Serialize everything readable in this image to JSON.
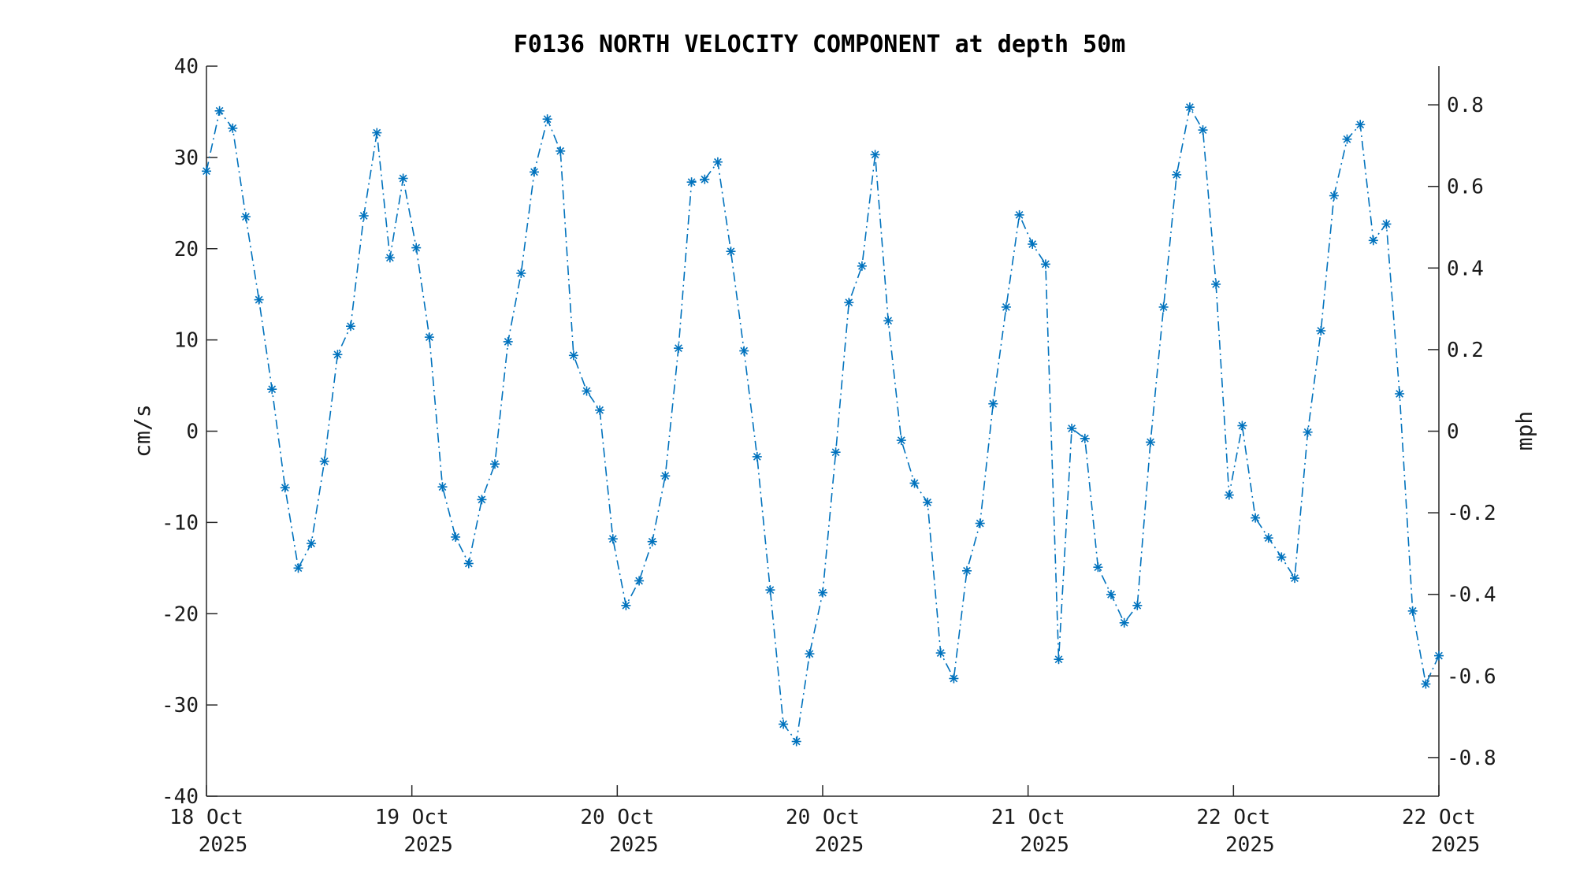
{
  "chart_data": {
    "type": "line",
    "title": "F0136 NORTH VELOCITY COMPONENT at depth 50m",
    "ylabel": "cm/s",
    "y2label": "mph",
    "ylim": [
      -40,
      40
    ],
    "yticks": [
      "-40",
      "-30",
      "-20",
      "-10",
      "0",
      "10",
      "20",
      "30",
      "40"
    ],
    "y2lim": [
      -0.8948,
      0.8948
    ],
    "y2ticks": [
      "-0.8",
      "-0.6",
      "-0.4",
      "-0.2",
      "0",
      "0.2",
      "0.4",
      "0.6",
      "0.8"
    ],
    "xticks": [
      {
        "day": "18 Oct",
        "year": "2025"
      },
      {
        "day": "19 Oct",
        "year": "2025"
      },
      {
        "day": "20 Oct",
        "year": "2025"
      },
      {
        "day": "20 Oct",
        "year": "2025"
      },
      {
        "day": "21 Oct",
        "year": "2025"
      },
      {
        "day": "22 Oct",
        "year": "2025"
      },
      {
        "day": "22 Oct",
        "year": "2025"
      }
    ],
    "grid": false,
    "marker": "asterisk",
    "line_style": "dash-dot",
    "color": "#0072BD",
    "series": [
      {
        "values": [
          28.5,
          35.1,
          33.2,
          23.5,
          14.4,
          4.6,
          -6.2,
          -15.0,
          -12.3,
          -3.3,
          8.4,
          11.5,
          23.6,
          32.7,
          19.0,
          27.7,
          20.1,
          10.3,
          -6.1,
          -11.6,
          -14.5,
          -7.5,
          -3.6,
          9.8,
          17.3,
          28.4,
          34.2,
          30.7,
          8.3,
          4.4,
          2.3,
          -11.8,
          -19.1,
          -16.4,
          -12.1,
          -4.9,
          9.1,
          27.3,
          27.6,
          29.5,
          19.7,
          8.8,
          -2.8,
          -17.4,
          -32.1,
          -34.0,
          -24.4,
          -17.7,
          -2.3,
          14.1,
          18.1,
          30.3,
          12.1,
          -1.0,
          -5.7,
          -7.8,
          -24.3,
          -27.1,
          -15.3,
          -10.1,
          3.0,
          13.6,
          23.7,
          20.5,
          18.3,
          -25.0,
          0.3,
          -0.8,
          -14.9,
          -17.9,
          -21.0,
          -19.1,
          -1.2,
          13.6,
          28.1,
          35.5,
          33.0,
          16.1,
          -7.0,
          0.6,
          -9.5,
          -11.7,
          -13.8,
          -16.1,
          -0.1,
          11.0,
          25.8,
          32.0,
          33.6,
          20.9,
          22.7,
          4.1,
          -19.7,
          -27.7,
          -24.6
        ]
      }
    ]
  }
}
